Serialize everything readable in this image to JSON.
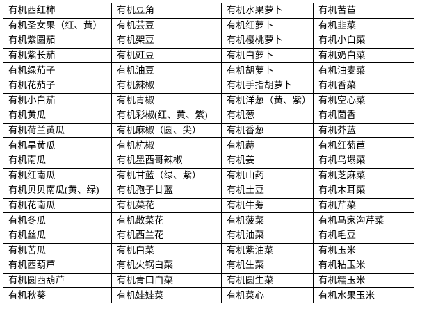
{
  "table": {
    "rows": [
      [
        "有机西红柿",
        "有机豆角",
        "有机水果萝卜",
        "有机苦苣"
      ],
      [
        "有机圣女果（红、黄）",
        "有机芸豆",
        "有机红萝卜",
        "有机韭菜"
      ],
      [
        "有机紫圆茄",
        "有机架豆",
        "有机樱桃萝卜",
        "有机小白菜"
      ],
      [
        "有机紫长茄",
        "有机豇豆",
        "有机白萝卜",
        "有机奶白菜"
      ],
      [
        "有机绿茄子",
        "有机油豆",
        "有机胡萝卜",
        "有机油麦菜"
      ],
      [
        "有机花茄子",
        "有机辣椒",
        "有机手指胡萝卜",
        "有机香菜"
      ],
      [
        "有机小白茄",
        "有机青椒",
        "有机洋葱（黄、紫）",
        "有机空心菜"
      ],
      [
        "有机黄瓜",
        "有机彩椒(红、黄、紫)",
        "有机葱",
        "有机茴香"
      ],
      [
        "有机荷兰黄瓜",
        "有机麻椒（圆、尖）",
        "有机香葱",
        "有机芥蓝"
      ],
      [
        "有机旱黄瓜",
        "有机杭椒",
        "有机蒜",
        "有机红菊苣"
      ],
      [
        "有机南瓜",
        "有机墨西哥辣椒",
        "有机姜",
        "有机乌塌菜"
      ],
      [
        "有机红南瓜",
        "有机甘蓝（绿、紫）",
        "有机山药",
        "有机芝麻菜"
      ],
      [
        "有机贝贝南瓜(黄、绿)",
        "有机孢子甘蓝",
        "有机土豆",
        "有机木耳菜"
      ],
      [
        "有机花南瓜",
        "有机菜花",
        "有机牛蒡",
        "有机芹菜"
      ],
      [
        "有机冬瓜",
        "有机散菜花",
        "有机菠菜",
        "有机马家沟芹菜"
      ],
      [
        "有机丝瓜",
        "有机西兰花",
        "有机油菜",
        "有机毛豆"
      ],
      [
        "有机苦瓜",
        "有机白菜",
        "有机紫油菜",
        "有机玉米"
      ],
      [
        "有机西葫芦",
        "有机火锅白菜",
        "有机生菜",
        "有机粘玉米"
      ],
      [
        "有机圆西葫芦",
        "有机青口白菜",
        "有机圆生菜",
        "有机糯玉米"
      ],
      [
        "有机秋葵",
        "有机娃娃菜",
        "有机菜心",
        "有机水果玉米"
      ]
    ]
  }
}
